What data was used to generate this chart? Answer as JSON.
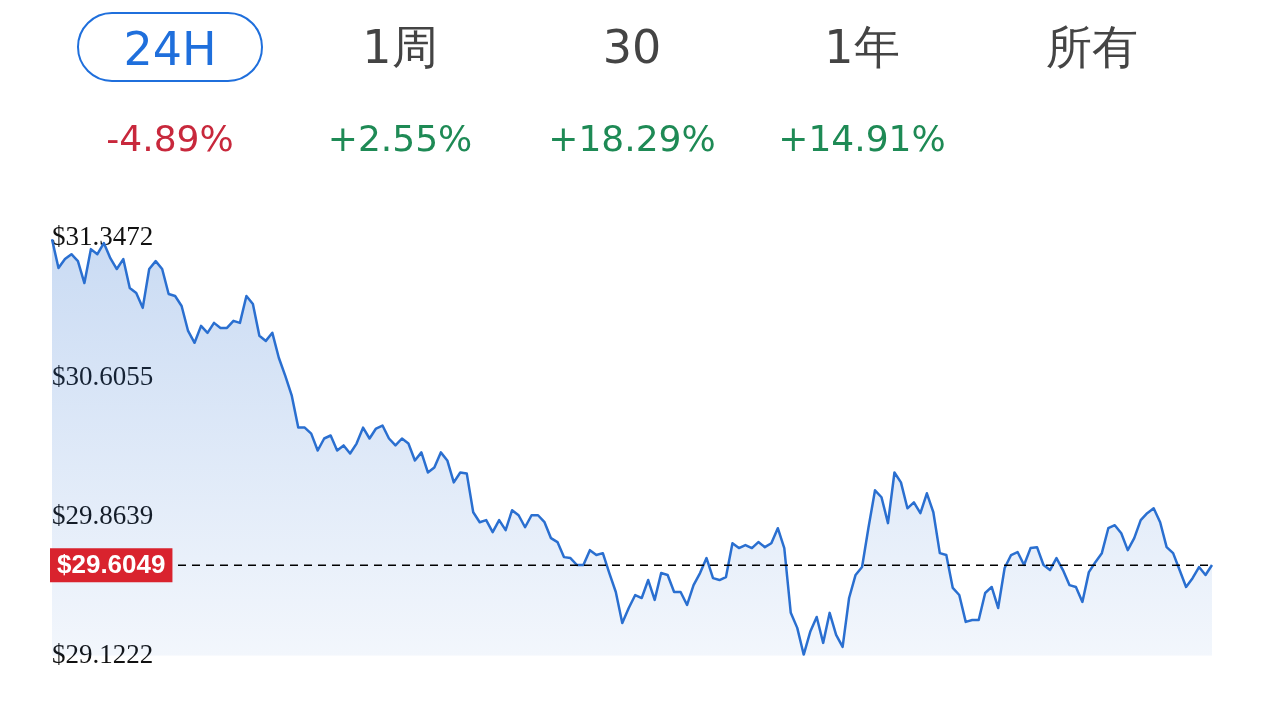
{
  "chart_data": {
    "type": "area",
    "annotations": [
      "24H",
      "1周",
      "30",
      "1年",
      "所有",
      "-4.89%",
      "+2.55%",
      "+18.29%",
      "+14.91%"
    ],
    "categories": [
      null,
      null,
      null,
      null,
      null,
      null,
      null,
      null,
      null,
      null,
      null,
      null,
      null,
      null,
      null,
      null,
      null,
      null,
      null,
      null,
      null,
      null,
      null,
      null,
      null,
      null,
      null,
      null,
      null,
      null,
      null,
      null,
      null,
      null,
      null,
      null,
      null,
      null,
      null,
      null,
      null,
      null,
      null,
      null,
      null,
      null,
      null,
      null,
      null,
      null,
      null,
      null,
      null,
      null,
      null,
      null,
      null,
      null,
      null,
      null,
      null,
      null,
      null,
      null,
      null,
      null,
      null,
      null,
      null,
      null,
      null,
      null,
      null,
      null,
      null,
      null,
      null,
      null,
      null,
      null,
      null,
      null,
      null,
      null,
      null,
      null,
      null,
      null,
      null,
      null,
      null,
      null,
      null,
      null,
      null,
      null,
      null,
      null,
      null,
      null,
      null,
      null,
      null,
      null,
      null,
      null,
      null,
      null,
      null,
      null,
      null,
      null,
      null,
      null,
      null,
      null,
      null,
      null,
      null,
      null,
      null,
      null,
      null,
      null,
      null,
      null,
      null,
      null,
      null,
      null,
      null,
      null,
      null,
      null,
      null,
      null,
      null,
      null,
      null,
      null,
      null,
      null,
      null,
      null,
      null,
      null,
      null,
      null,
      null,
      null,
      null,
      null,
      null,
      null,
      null,
      null,
      null,
      null,
      null,
      null,
      null,
      null,
      null,
      null,
      null,
      null,
      null,
      null,
      null,
      null,
      null,
      null,
      null,
      null,
      null,
      null,
      null,
      null,
      null,
      null
    ],
    "series": [
      {
        "color": "#2a6fd0",
        "values": [
          31.342,
          31.188,
          31.236,
          31.262,
          31.225,
          31.108,
          31.289,
          31.262,
          31.321,
          31.241,
          31.183,
          31.236,
          31.082,
          31.055,
          30.976,
          31.183,
          31.225,
          31.183,
          31.05,
          31.039,
          30.986,
          30.853,
          30.79,
          30.88,
          30.843,
          30.896,
          30.869,
          30.869,
          30.907,
          30.896,
          31.039,
          30.997,
          30.827,
          30.8,
          30.843,
          30.71,
          30.614,
          30.508,
          30.338,
          30.338,
          30.306,
          30.216,
          30.28,
          30.296,
          30.216,
          30.243,
          30.2,
          30.253,
          30.338,
          30.28,
          30.333,
          30.349,
          30.28,
          30.243,
          30.28,
          30.253,
          30.163,
          30.206,
          30.099,
          30.126,
          30.206,
          30.163,
          30.046,
          30.099,
          30.094,
          29.887,
          29.834,
          29.845,
          29.781,
          29.845,
          29.792,
          29.898,
          29.871,
          29.807,
          29.871,
          29.871,
          29.834,
          29.749,
          29.728,
          29.648,
          29.643,
          29.606,
          29.606,
          29.685,
          29.659,
          29.669,
          29.563,
          29.462,
          29.297,
          29.377,
          29.446,
          29.43,
          29.526,
          29.42,
          29.563,
          29.553,
          29.462,
          29.462,
          29.393,
          29.499,
          29.563,
          29.643,
          29.536,
          29.526,
          29.542,
          29.722,
          29.696,
          29.712,
          29.696,
          29.728,
          29.701,
          29.722,
          29.802,
          29.696,
          29.351,
          29.271,
          29.128,
          29.25,
          29.329,
          29.191,
          29.351,
          29.234,
          29.17,
          29.43,
          29.553,
          29.595,
          29.807,
          30.004,
          29.967,
          29.829,
          30.099,
          30.046,
          29.908,
          29.94,
          29.882,
          29.988,
          29.887,
          29.669,
          29.659,
          29.484,
          29.446,
          29.303,
          29.313,
          29.313,
          29.457,
          29.489,
          29.377,
          29.59,
          29.659,
          29.675,
          29.606,
          29.696,
          29.701,
          29.606,
          29.579,
          29.643,
          29.579,
          29.499,
          29.489,
          29.409,
          29.568,
          29.621,
          29.669,
          29.802,
          29.818,
          29.775,
          29.685,
          29.749,
          29.845,
          29.882,
          29.908,
          29.834,
          29.701,
          29.669,
          29.579,
          29.489,
          29.536,
          29.595,
          29.553,
          29.606
        ]
      }
    ],
    "ylim": [
      29.1222,
      31.3472
    ],
    "yticks": [
      {
        "value": 31.3472,
        "label": "$31.3472"
      },
      {
        "value": 30.6055,
        "label": "$30.6055"
      },
      {
        "value": 29.8639,
        "label": "$29.8639"
      },
      {
        "value": 29.1222,
        "label": "$29.1222"
      }
    ],
    "ref_lines": [
      {
        "axis": "y",
        "value": 29.6049,
        "label": "$29.6049",
        "color": "#000000",
        "line_style": "dashed"
      }
    ],
    "grid": false,
    "legend": false
  }
}
